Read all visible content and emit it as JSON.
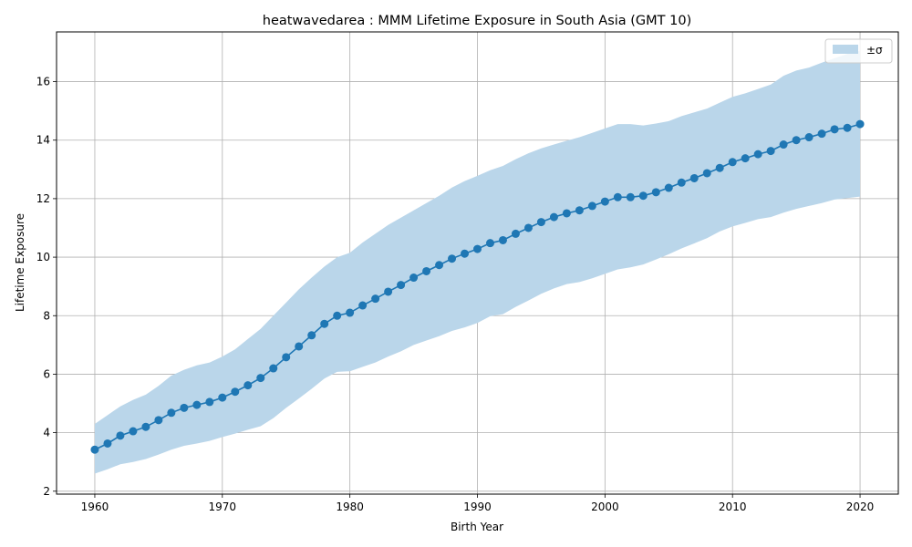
{
  "chart_data": {
    "type": "line",
    "title": "heatwavedarea : MMM Lifetime Exposure in South Asia (GMT 10)",
    "xlabel": "Birth Year",
    "ylabel": "Lifetime Exposure",
    "xlim": [
      1957,
      2023
    ],
    "ylim": [
      1.9,
      17.7
    ],
    "xticks": [
      1960,
      1970,
      1980,
      1990,
      2000,
      2010,
      2020
    ],
    "yticks": [
      2,
      4,
      6,
      8,
      10,
      12,
      14,
      16
    ],
    "grid": true,
    "legend_position": "top-right",
    "colors": {
      "line": "#1f77b4",
      "band": "#bad6ea",
      "grid": "#b0b0b0"
    },
    "x": [
      1960,
      1961,
      1962,
      1963,
      1964,
      1965,
      1966,
      1967,
      1968,
      1969,
      1970,
      1971,
      1972,
      1973,
      1974,
      1975,
      1976,
      1977,
      1978,
      1979,
      1980,
      1981,
      1982,
      1983,
      1984,
      1985,
      1986,
      1987,
      1988,
      1989,
      1990,
      1991,
      1992,
      1993,
      1994,
      1995,
      1996,
      1997,
      1998,
      1999,
      2000,
      2001,
      2002,
      2003,
      2004,
      2005,
      2006,
      2007,
      2008,
      2009,
      2010,
      2011,
      2012,
      2013,
      2014,
      2015,
      2016,
      2017,
      2018,
      2019,
      2020
    ],
    "series": [
      {
        "type": "line",
        "marker": "circle",
        "values": [
          3.42,
          3.63,
          3.9,
          4.05,
          4.2,
          4.43,
          4.68,
          4.85,
          4.95,
          5.05,
          5.2,
          5.4,
          5.62,
          5.87,
          6.2,
          6.58,
          6.95,
          7.33,
          7.72,
          8.0,
          8.1,
          8.35,
          8.58,
          8.82,
          9.05,
          9.3,
          9.52,
          9.73,
          9.95,
          10.12,
          10.28,
          10.48,
          10.58,
          10.8,
          11.0,
          11.2,
          11.37,
          11.5,
          11.6,
          11.75,
          11.9,
          12.05,
          12.05,
          12.1,
          12.22,
          12.37,
          12.55,
          12.7,
          12.87,
          13.05,
          13.25,
          13.38,
          13.52,
          13.63,
          13.85,
          14.0,
          14.1,
          14.22,
          14.37,
          14.42,
          14.55
        ]
      },
      {
        "name": "±σ",
        "type": "band",
        "lower": [
          2.6,
          2.75,
          2.92,
          3.0,
          3.1,
          3.25,
          3.42,
          3.55,
          3.63,
          3.72,
          3.85,
          3.97,
          4.1,
          4.22,
          4.5,
          4.85,
          5.17,
          5.5,
          5.85,
          6.08,
          6.1,
          6.25,
          6.4,
          6.6,
          6.78,
          7.0,
          7.15,
          7.3,
          7.48,
          7.6,
          7.75,
          7.98,
          8.05,
          8.3,
          8.52,
          8.75,
          8.93,
          9.08,
          9.15,
          9.28,
          9.43,
          9.58,
          9.65,
          9.75,
          9.92,
          10.1,
          10.3,
          10.47,
          10.65,
          10.88,
          11.05,
          11.17,
          11.3,
          11.37,
          11.52,
          11.65,
          11.75,
          11.85,
          11.97,
          12.02,
          12.07
        ],
        "upper": [
          4.3,
          4.6,
          4.9,
          5.12,
          5.3,
          5.6,
          5.95,
          6.15,
          6.3,
          6.4,
          6.6,
          6.85,
          7.2,
          7.55,
          8.0,
          8.45,
          8.9,
          9.3,
          9.68,
          10.0,
          10.15,
          10.5,
          10.8,
          11.1,
          11.35,
          11.6,
          11.85,
          12.1,
          12.38,
          12.6,
          12.78,
          12.97,
          13.12,
          13.35,
          13.55,
          13.72,
          13.85,
          13.98,
          14.1,
          14.25,
          14.4,
          14.55,
          14.55,
          14.5,
          14.57,
          14.65,
          14.82,
          14.95,
          15.08,
          15.28,
          15.48,
          15.6,
          15.75,
          15.9,
          16.2,
          16.38,
          16.48,
          16.65,
          16.8,
          16.95,
          17.05
        ]
      }
    ]
  }
}
